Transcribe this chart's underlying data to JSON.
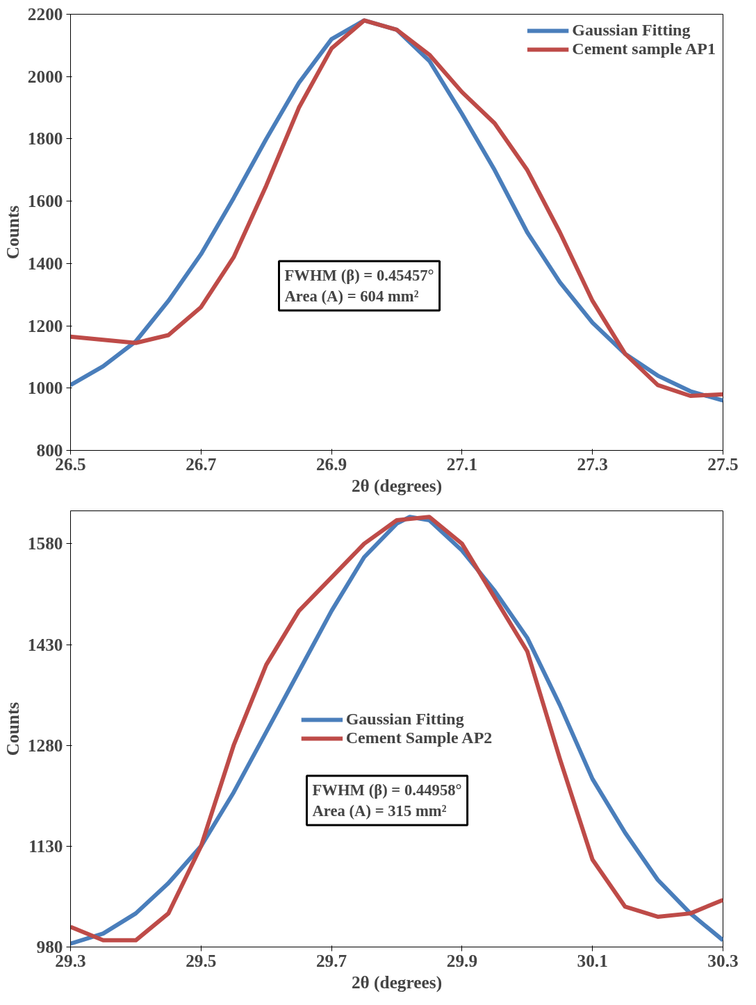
{
  "chart_data": [
    {
      "type": "line",
      "xlabel": "2θ (degrees)",
      "ylabel": "Counts",
      "xlim": [
        26.5,
        27.5
      ],
      "ylim": [
        800,
        2200
      ],
      "xticks": [
        26.5,
        26.7,
        26.9,
        27.1,
        27.3,
        27.5
      ],
      "yticks": [
        800,
        1000,
        1200,
        1400,
        1600,
        1800,
        2000,
        2200
      ],
      "grid": false,
      "legend": "top right",
      "marker": "none",
      "line_style": "solid",
      "annotations": [
        "FWHM (β) = 0.45457°\nArea (A) = 604 mm²"
      ],
      "series": [
        {
          "name": "Gaussian Fitting",
          "color": "#4a7ebb",
          "x": [
            26.5,
            26.55,
            26.6,
            26.65,
            26.7,
            26.75,
            26.8,
            26.85,
            26.9,
            26.95,
            27.0,
            27.05,
            27.1,
            27.15,
            27.2,
            27.25,
            27.3,
            27.35,
            27.4,
            27.45,
            27.5
          ],
          "values": [
            1010,
            1070,
            1150,
            1280,
            1430,
            1610,
            1800,
            1980,
            2120,
            2180,
            2150,
            2050,
            1880,
            1700,
            1500,
            1340,
            1210,
            1110,
            1040,
            990,
            960
          ]
        },
        {
          "name": "Cement sample AP1",
          "color": "#be4b48",
          "x": [
            26.5,
            26.55,
            26.6,
            26.65,
            26.7,
            26.75,
            26.8,
            26.85,
            26.9,
            26.95,
            27.0,
            27.05,
            27.1,
            27.15,
            27.2,
            27.25,
            27.3,
            27.35,
            27.4,
            27.45,
            27.5
          ],
          "values": [
            1165,
            1155,
            1145,
            1170,
            1260,
            1420,
            1650,
            1900,
            2090,
            2180,
            2150,
            2070,
            1950,
            1850,
            1700,
            1500,
            1280,
            1110,
            1010,
            975,
            980
          ]
        }
      ]
    },
    {
      "type": "line",
      "xlabel": "2θ (degrees)",
      "ylabel": "Counts",
      "xlim": [
        29.3,
        30.3
      ],
      "ylim": [
        980,
        1629
      ],
      "xticks": [
        29.3,
        29.5,
        29.7,
        29.9,
        30.1,
        30.3
      ],
      "yticks": [
        980,
        1130,
        1280,
        1430,
        1580
      ],
      "grid": false,
      "legend": "center",
      "marker": "none",
      "line_style": "solid",
      "annotations": [
        "FWHM (β) = 0.44958°\nArea (A) = 315 mm²"
      ],
      "series": [
        {
          "name": "Gaussian Fitting",
          "color": "#4a7ebb",
          "x": [
            29.3,
            29.35,
            29.4,
            29.45,
            29.5,
            29.55,
            29.6,
            29.65,
            29.7,
            29.75,
            29.8,
            29.82,
            29.85,
            29.9,
            29.95,
            30.0,
            30.05,
            30.1,
            30.15,
            30.2,
            30.25,
            30.3
          ],
          "values": [
            985,
            1000,
            1030,
            1075,
            1130,
            1210,
            1300,
            1390,
            1480,
            1560,
            1610,
            1620,
            1615,
            1570,
            1510,
            1440,
            1340,
            1230,
            1150,
            1080,
            1030,
            990
          ]
        },
        {
          "name": "Cement Sample AP2",
          "color": "#be4b48",
          "x": [
            29.3,
            29.35,
            29.4,
            29.45,
            29.5,
            29.55,
            29.6,
            29.65,
            29.7,
            29.75,
            29.8,
            29.85,
            29.9,
            29.95,
            30.0,
            30.05,
            30.1,
            30.15,
            30.2,
            30.25,
            30.3
          ],
          "values": [
            1010,
            990,
            990,
            1030,
            1130,
            1280,
            1400,
            1480,
            1530,
            1580,
            1615,
            1620,
            1580,
            1500,
            1420,
            1260,
            1110,
            1040,
            1025,
            1030,
            1050
          ]
        }
      ]
    }
  ]
}
